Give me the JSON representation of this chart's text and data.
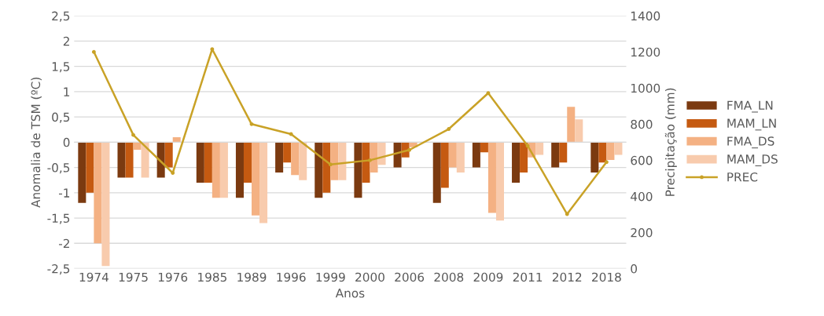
{
  "chart_data": {
    "type": "bar",
    "xlabel": "Anos",
    "ylabel": "Anomalia de TSM (ºC)",
    "y2label": "Precipitação (mm)",
    "categories": [
      "1974",
      "1975",
      "1976",
      "1985",
      "1989",
      "1996",
      "1999",
      "2000",
      "2006",
      "2008",
      "2009",
      "2011",
      "2012",
      "2018"
    ],
    "series": [
      {
        "name": "FMA_LN",
        "color": "#7b3a10",
        "values": [
          -1.2,
          -0.7,
          -0.7,
          -0.8,
          -1.1,
          -0.6,
          -1.1,
          -1.1,
          -0.5,
          -1.2,
          -0.5,
          -0.8,
          -0.5,
          -0.6
        ]
      },
      {
        "name": "MAM_LN",
        "color": "#c55a11",
        "values": [
          -1.0,
          -0.7,
          -0.5,
          -0.8,
          -0.8,
          -0.4,
          -1.0,
          -0.8,
          -0.3,
          -0.9,
          -0.2,
          -0.6,
          -0.4,
          -0.4
        ]
      },
      {
        "name": "FMA_DS",
        "color": "#f4b183",
        "values": [
          -2.0,
          -0.15,
          0.1,
          -1.1,
          -1.45,
          -0.65,
          -0.75,
          -0.6,
          -0.1,
          -0.5,
          -1.4,
          -0.3,
          0.7,
          -0.35
        ]
      },
      {
        "name": "MAM_DS",
        "color": "#f8cbad",
        "values": [
          -2.45,
          -0.7,
          0,
          -1.1,
          -1.6,
          -0.75,
          -0.75,
          -0.45,
          null,
          -0.6,
          -1.55,
          -0.25,
          0.45,
          -0.25
        ]
      },
      {
        "name": "PREC",
        "type": "line",
        "axis": "y2",
        "color": "#c9a227",
        "marker": "circle",
        "values": [
          1200,
          740,
          530,
          1215,
          800,
          745,
          577,
          600,
          657,
          773,
          972,
          680,
          302,
          590
        ]
      }
    ],
    "ylim": [
      -2.5,
      2.5
    ],
    "yticks": [
      {
        "value": -2.5,
        "label": "-2,5"
      },
      {
        "value": -2,
        "label": "-2"
      },
      {
        "value": -1.5,
        "label": "-1,5"
      },
      {
        "value": -1,
        "label": "-1"
      },
      {
        "value": -0.5,
        "label": "-0,5"
      },
      {
        "value": 0,
        "label": "0"
      },
      {
        "value": 0.5,
        "label": "0,5"
      },
      {
        "value": 1,
        "label": "1"
      },
      {
        "value": 1.5,
        "label": "1,5"
      },
      {
        "value": 2,
        "label": "2"
      },
      {
        "value": 2.5,
        "label": "2,5"
      }
    ],
    "y2lim": [
      0,
      1400
    ],
    "y2ticks": [
      0,
      200,
      400,
      600,
      800,
      1000,
      1200,
      1400
    ],
    "grid": "y",
    "legend": "right"
  }
}
